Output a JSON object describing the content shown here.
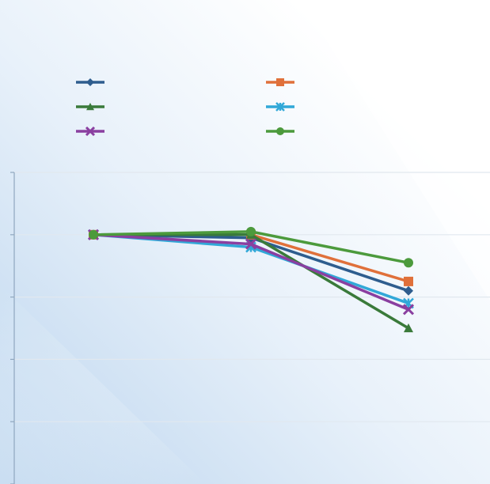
{
  "chart_data": {
    "type": "line",
    "title": "",
    "xlabel": "",
    "ylabel": "",
    "categories": [
      "",
      "",
      ""
    ],
    "ylim": [
      0,
      100
    ],
    "grid": true,
    "legend_position": "top",
    "series": [
      {
        "values": [
          80,
          79,
          62
        ],
        "color": "#2e5d8e",
        "marker": "diamond"
      },
      {
        "values": [
          80,
          80,
          65
        ],
        "color": "#e0703a",
        "marker": "square"
      },
      {
        "values": [
          80,
          80,
          50
        ],
        "color": "#3a7a3a",
        "marker": "triangle"
      },
      {
        "values": [
          80,
          76,
          58
        ],
        "color": "#31a8d8",
        "marker": "star"
      },
      {
        "values": [
          80,
          77,
          56
        ],
        "color": "#8a3fa0",
        "marker": "x"
      },
      {
        "values": [
          80,
          81,
          71
        ],
        "color": "#4c9a3c",
        "marker": "circle"
      }
    ],
    "colors": {
      "background_light": "#ffffff",
      "background_accent": "#cfe2f3",
      "gridline": "#e1e8ef",
      "axis": "#8fa7bf"
    }
  }
}
